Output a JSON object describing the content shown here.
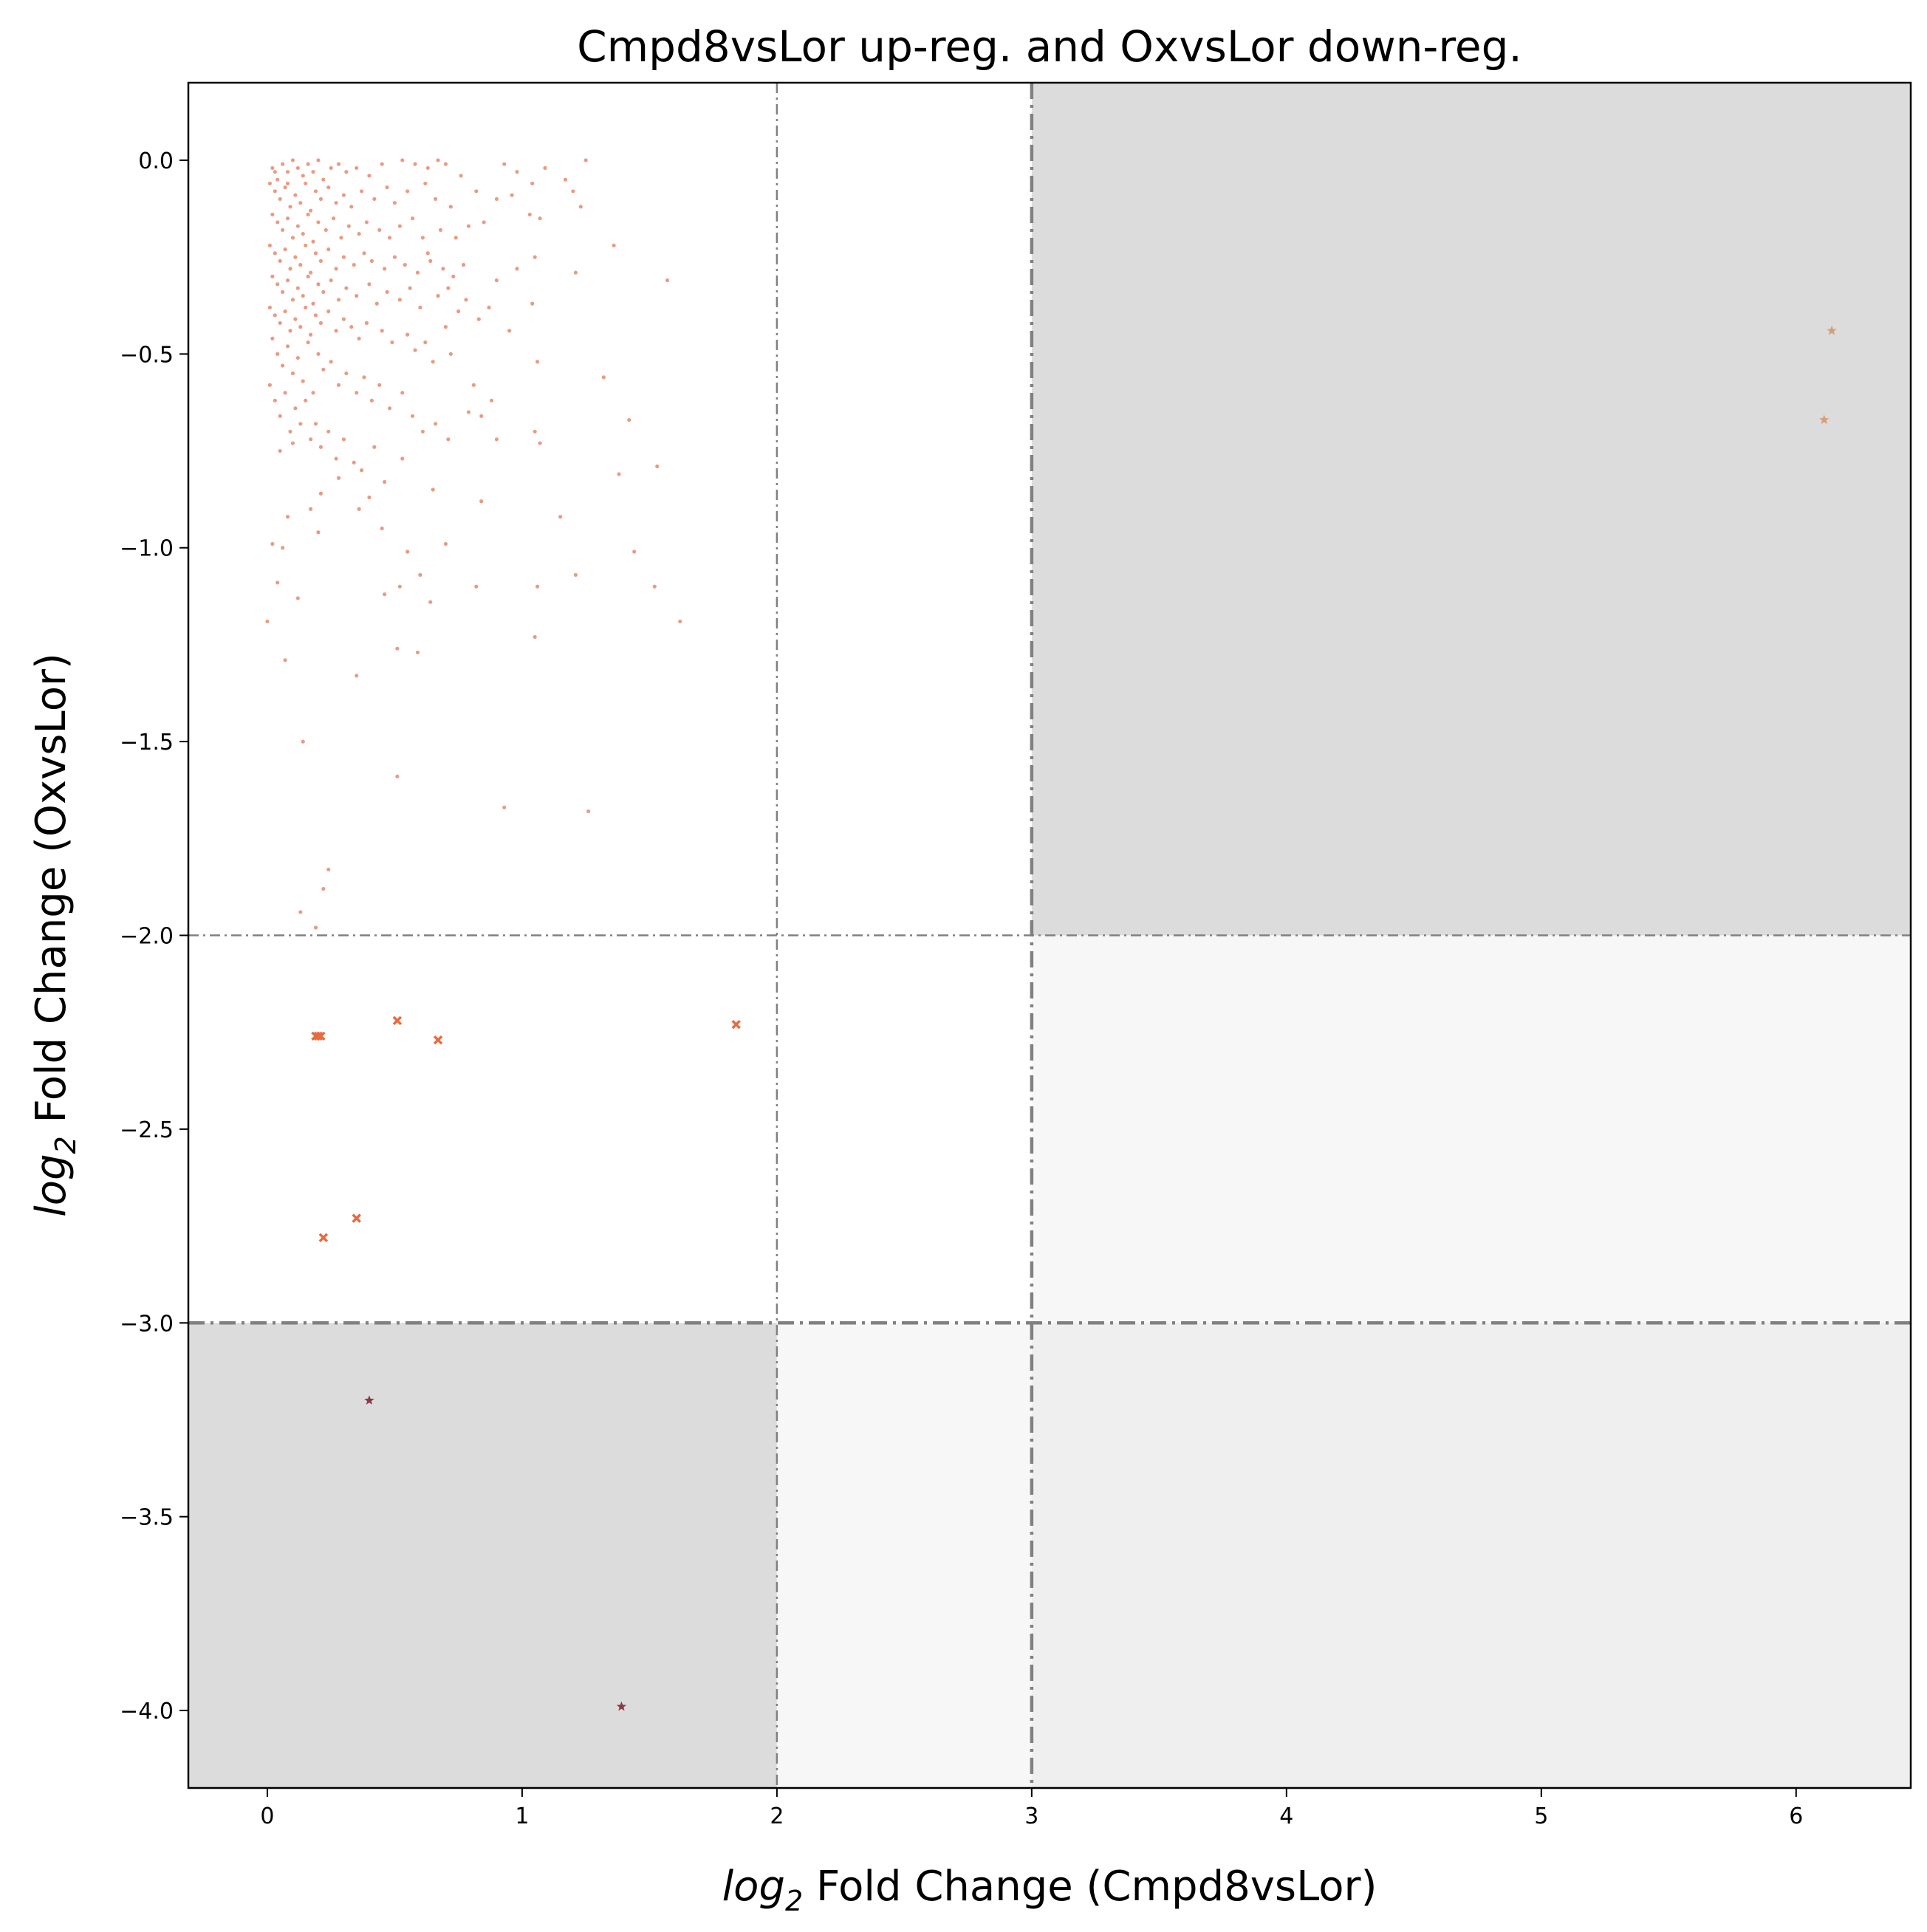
{
  "chart_data": {
    "type": "scatter",
    "title": "Cmpd8vsLor up-reg. and OxvsLor down-reg.",
    "xlabel_prefix": "log",
    "xlabel_sub": "2",
    "xlabel_rest": " Fold Change (Cmpd8vsLor)",
    "ylabel_prefix": "log",
    "ylabel_sub": "2",
    "ylabel_rest": " Fold Change (OxvsLor)",
    "xlim": [
      -0.31,
      6.45
    ],
    "ylim": [
      -4.2,
      0.2
    ],
    "xticks": [
      0,
      1,
      2,
      3,
      4,
      5,
      6
    ],
    "xtick_labels": [
      "0",
      "1",
      "2",
      "3",
      "4",
      "5",
      "6"
    ],
    "yticks": [
      0.0,
      -0.5,
      -1.0,
      -1.5,
      -2.0,
      -2.5,
      -3.0,
      -3.5,
      -4.0
    ],
    "ytick_labels": [
      "0.0",
      "−0.5",
      "−1.0",
      "−1.5",
      "−2.0",
      "−2.5",
      "−3.0",
      "−3.5",
      "−4.0"
    ],
    "grid": false,
    "threshold_lines": {
      "vertical": [
        {
          "x": 2,
          "style": "thin"
        },
        {
          "x": 3,
          "style": "thick"
        }
      ],
      "horizontal": [
        {
          "y": -2,
          "style": "thin"
        },
        {
          "y": -3,
          "style": "thick"
        }
      ],
      "color": "#808080"
    },
    "regions": [
      {
        "x": [
          3,
          6.45
        ],
        "y": [
          -2,
          0.2
        ],
        "color": "#dcdcdc"
      },
      {
        "x": [
          -0.31,
          2
        ],
        "y": [
          -4.2,
          -3
        ],
        "color": "#dcdcdc"
      },
      {
        "x": [
          3,
          6.45
        ],
        "y": [
          -3,
          -2
        ],
        "color": "#f7f7f7"
      },
      {
        "x": [
          2,
          3
        ],
        "y": [
          -4.2,
          -3
        ],
        "color": "#f7f7f7"
      },
      {
        "x": [
          3,
          6.45
        ],
        "y": [
          -4.2,
          -3
        ],
        "color": "#efefef"
      }
    ],
    "series": [
      {
        "marker": "dot",
        "color": "#e07b5a",
        "points": [
          [
            0.02,
            -0.02
          ],
          [
            0.04,
            -0.05
          ],
          [
            0.06,
            -0.01
          ],
          [
            0.08,
            -0.03
          ],
          [
            0.1,
            -0.0
          ],
          [
            0.12,
            -0.02
          ],
          [
            0.14,
            -0.04
          ],
          [
            0.16,
            -0.01
          ],
          [
            0.18,
            -0.03
          ],
          [
            0.2,
            -0.0
          ],
          [
            0.22,
            -0.05
          ],
          [
            0.25,
            -0.02
          ],
          [
            0.28,
            -0.01
          ],
          [
            0.31,
            -0.03
          ],
          [
            0.35,
            -0.02
          ],
          [
            0.4,
            -0.04
          ],
          [
            0.45,
            -0.01
          ],
          [
            0.53,
            -0.0
          ],
          [
            0.58,
            -0.01
          ],
          [
            0.63,
            -0.02
          ],
          [
            0.67,
            -0.0
          ],
          [
            0.7,
            -0.01
          ],
          [
            0.76,
            -0.04
          ],
          [
            0.93,
            -0.01
          ],
          [
            0.98,
            -0.03
          ],
          [
            1.04,
            -0.06
          ],
          [
            1.09,
            -0.02
          ],
          [
            1.17,
            -0.05
          ],
          [
            1.25,
            -0.0
          ],
          [
            1.2,
            -0.08
          ],
          [
            0.01,
            -0.06
          ],
          [
            0.03,
            -0.08
          ],
          [
            0.05,
            -0.1
          ],
          [
            0.07,
            -0.07
          ],
          [
            0.09,
            -0.12
          ],
          [
            0.11,
            -0.09
          ],
          [
            0.13,
            -0.11
          ],
          [
            0.15,
            -0.06
          ],
          [
            0.17,
            -0.13
          ],
          [
            0.19,
            -0.08
          ],
          [
            0.21,
            -0.1
          ],
          [
            0.24,
            -0.07
          ],
          [
            0.27,
            -0.11
          ],
          [
            0.3,
            -0.09
          ],
          [
            0.33,
            -0.12
          ],
          [
            0.37,
            -0.08
          ],
          [
            0.42,
            -0.1
          ],
          [
            0.47,
            -0.07
          ],
          [
            0.5,
            -0.11
          ],
          [
            0.55,
            -0.08
          ],
          [
            0.62,
            -0.06
          ],
          [
            0.66,
            -0.1
          ],
          [
            0.72,
            -0.12
          ],
          [
            0.82,
            -0.08
          ],
          [
            0.9,
            -0.1
          ],
          [
            1.03,
            -0.14
          ],
          [
            1.07,
            -0.15
          ],
          [
            1.23,
            -0.12
          ],
          [
            0.85,
            -0.16
          ],
          [
            0.96,
            -0.09
          ],
          [
            0.02,
            -0.14
          ],
          [
            0.04,
            -0.16
          ],
          [
            0.06,
            -0.18
          ],
          [
            0.08,
            -0.15
          ],
          [
            0.1,
            -0.2
          ],
          [
            0.12,
            -0.17
          ],
          [
            0.14,
            -0.19
          ],
          [
            0.16,
            -0.14
          ],
          [
            0.18,
            -0.21
          ],
          [
            0.2,
            -0.16
          ],
          [
            0.23,
            -0.18
          ],
          [
            0.26,
            -0.15
          ],
          [
            0.29,
            -0.2
          ],
          [
            0.32,
            -0.17
          ],
          [
            0.36,
            -0.19
          ],
          [
            0.39,
            -0.16
          ],
          [
            0.44,
            -0.18
          ],
          [
            0.48,
            -0.2
          ],
          [
            0.52,
            -0.17
          ],
          [
            0.57,
            -0.15
          ],
          [
            0.61,
            -0.2
          ],
          [
            0.68,
            -0.18
          ],
          [
            0.74,
            -0.2
          ],
          [
            0.79,
            -0.17
          ],
          [
            0.63,
            -0.24
          ],
          [
            1.36,
            -0.22
          ],
          [
            1.21,
            -0.29
          ],
          [
            1.57,
            -0.31
          ],
          [
            0.98,
            -0.28
          ],
          [
            1.05,
            -0.25
          ],
          [
            0.01,
            -0.22
          ],
          [
            0.03,
            -0.24
          ],
          [
            0.05,
            -0.26
          ],
          [
            0.07,
            -0.23
          ],
          [
            0.09,
            -0.28
          ],
          [
            0.11,
            -0.25
          ],
          [
            0.13,
            -0.27
          ],
          [
            0.15,
            -0.22
          ],
          [
            0.17,
            -0.29
          ],
          [
            0.19,
            -0.24
          ],
          [
            0.21,
            -0.26
          ],
          [
            0.24,
            -0.23
          ],
          [
            0.27,
            -0.28
          ],
          [
            0.3,
            -0.25
          ],
          [
            0.34,
            -0.27
          ],
          [
            0.38,
            -0.24
          ],
          [
            0.41,
            -0.26
          ],
          [
            0.46,
            -0.28
          ],
          [
            0.5,
            -0.25
          ],
          [
            0.54,
            -0.27
          ],
          [
            0.59,
            -0.29
          ],
          [
            0.64,
            -0.26
          ],
          [
            0.69,
            -0.28
          ],
          [
            0.73,
            -0.3
          ],
          [
            0.77,
            -0.27
          ],
          [
            0.9,
            -0.31
          ],
          [
            0.78,
            -0.36
          ],
          [
            0.87,
            -0.38
          ],
          [
            1.04,
            -0.37
          ],
          [
            0.71,
            -0.33
          ],
          [
            0.02,
            -0.3
          ],
          [
            0.04,
            -0.32
          ],
          [
            0.06,
            -0.34
          ],
          [
            0.08,
            -0.31
          ],
          [
            0.1,
            -0.36
          ],
          [
            0.12,
            -0.33
          ],
          [
            0.14,
            -0.35
          ],
          [
            0.16,
            -0.3
          ],
          [
            0.18,
            -0.37
          ],
          [
            0.2,
            -0.32
          ],
          [
            0.22,
            -0.34
          ],
          [
            0.25,
            -0.31
          ],
          [
            0.28,
            -0.36
          ],
          [
            0.31,
            -0.33
          ],
          [
            0.35,
            -0.35
          ],
          [
            0.4,
            -0.32
          ],
          [
            0.43,
            -0.37
          ],
          [
            0.47,
            -0.34
          ],
          [
            0.52,
            -0.36
          ],
          [
            0.56,
            -0.33
          ],
          [
            0.6,
            -0.38
          ],
          [
            0.67,
            -0.35
          ],
          [
            0.75,
            -0.39
          ],
          [
            0.83,
            -0.41
          ],
          [
            0.95,
            -0.44
          ],
          [
            1.06,
            -0.52
          ],
          [
            1.32,
            -0.56
          ],
          [
            1.42,
            -0.67
          ],
          [
            0.7,
            -0.43
          ],
          [
            0.62,
            -0.47
          ],
          [
            0.01,
            -0.38
          ],
          [
            0.03,
            -0.4
          ],
          [
            0.05,
            -0.42
          ],
          [
            0.07,
            -0.39
          ],
          [
            0.09,
            -0.44
          ],
          [
            0.11,
            -0.41
          ],
          [
            0.13,
            -0.43
          ],
          [
            0.15,
            -0.38
          ],
          [
            0.17,
            -0.45
          ],
          [
            0.19,
            -0.4
          ],
          [
            0.21,
            -0.42
          ],
          [
            0.24,
            -0.39
          ],
          [
            0.27,
            -0.44
          ],
          [
            0.3,
            -0.41
          ],
          [
            0.33,
            -0.43
          ],
          [
            0.36,
            -0.46
          ],
          [
            0.39,
            -0.42
          ],
          [
            0.45,
            -0.44
          ],
          [
            0.49,
            -0.47
          ],
          [
            0.55,
            -0.45
          ],
          [
            0.58,
            -0.49
          ],
          [
            0.65,
            -0.52
          ],
          [
            0.72,
            -0.5
          ],
          [
            0.81,
            -0.58
          ],
          [
            0.88,
            -0.62
          ],
          [
            0.84,
            -0.66
          ],
          [
            0.9,
            -0.72
          ],
          [
            1.05,
            -0.7
          ],
          [
            1.07,
            -0.73
          ],
          [
            0.79,
            -0.65
          ],
          [
            0.02,
            -0.46
          ],
          [
            0.04,
            -0.5
          ],
          [
            0.06,
            -0.53
          ],
          [
            0.08,
            -0.48
          ],
          [
            0.1,
            -0.55
          ],
          [
            0.12,
            -0.51
          ],
          [
            0.14,
            -0.57
          ],
          [
            0.16,
            -0.47
          ],
          [
            0.18,
            -0.6
          ],
          [
            0.2,
            -0.5
          ],
          [
            0.22,
            -0.54
          ],
          [
            0.25,
            -0.52
          ],
          [
            0.28,
            -0.58
          ],
          [
            0.31,
            -0.55
          ],
          [
            0.35,
            -0.6
          ],
          [
            0.38,
            -0.56
          ],
          [
            0.41,
            -0.62
          ],
          [
            0.44,
            -0.58
          ],
          [
            0.48,
            -0.64
          ],
          [
            0.53,
            -0.6
          ],
          [
            0.57,
            -0.66
          ],
          [
            0.61,
            -0.7
          ],
          [
            0.66,
            -0.68
          ],
          [
            0.71,
            -0.72
          ],
          [
            0.53,
            -0.77
          ],
          [
            0.46,
            -0.83
          ],
          [
            0.4,
            -0.87
          ],
          [
            0.65,
            -0.85
          ],
          [
            0.84,
            -0.88
          ],
          [
            0.45,
            -0.95
          ],
          [
            0.01,
            -0.58
          ],
          [
            0.03,
            -0.62
          ],
          [
            0.05,
            -0.66
          ],
          [
            0.07,
            -0.6
          ],
          [
            0.09,
            -0.7
          ],
          [
            0.11,
            -0.64
          ],
          [
            0.13,
            -0.68
          ],
          [
            0.15,
            -0.62
          ],
          [
            0.17,
            -0.72
          ],
          [
            0.19,
            -0.68
          ],
          [
            0.21,
            -0.74
          ],
          [
            0.24,
            -0.7
          ],
          [
            0.27,
            -0.77
          ],
          [
            0.3,
            -0.72
          ],
          [
            0.34,
            -0.78
          ],
          [
            0.37,
            -0.8
          ],
          [
            0.42,
            -0.74
          ],
          [
            0.36,
            -0.9
          ],
          [
            0.21,
            -0.86
          ],
          [
            0.2,
            -0.96
          ],
          [
            0.02,
            -0.99
          ],
          [
            0.06,
            -1.0
          ],
          [
            0.05,
            -0.75
          ],
          [
            0.1,
            -0.73
          ],
          [
            0.08,
            -0.92
          ],
          [
            0.17,
            -0.9
          ],
          [
            0.28,
            -0.82
          ],
          [
            1.15,
            -0.92
          ],
          [
            1.38,
            -0.81
          ],
          [
            1.53,
            -0.79
          ],
          [
            0.04,
            -1.09
          ],
          [
            0.12,
            -1.13
          ],
          [
            0.0,
            -1.19
          ],
          [
            0.07,
            -1.29
          ],
          [
            0.55,
            -1.01
          ],
          [
            0.6,
            -1.07
          ],
          [
            0.7,
            -0.99
          ],
          [
            0.52,
            -1.1
          ],
          [
            0.46,
            -1.12
          ],
          [
            0.64,
            -1.14
          ],
          [
            0.51,
            -1.26
          ],
          [
            0.59,
            -1.27
          ],
          [
            0.82,
            -1.1
          ],
          [
            1.06,
            -1.1
          ],
          [
            1.05,
            -1.23
          ],
          [
            1.21,
            -1.07
          ],
          [
            1.44,
            -1.01
          ],
          [
            1.52,
            -1.1
          ],
          [
            1.62,
            -1.19
          ],
          [
            0.35,
            -1.33
          ],
          [
            0.14,
            -1.5
          ],
          [
            0.51,
            -1.59
          ],
          [
            0.93,
            -1.67
          ],
          [
            1.26,
            -1.68
          ],
          [
            0.24,
            -1.83
          ],
          [
            0.22,
            -1.88
          ],
          [
            0.13,
            -1.94
          ],
          [
            0.19,
            -1.98
          ],
          [
            0.03,
            -0.03
          ],
          [
            0.08,
            -0.06
          ]
        ]
      },
      {
        "marker": "x",
        "color": "#e86a3f",
        "points": [
          [
            0.19,
            -2.26
          ],
          [
            0.2,
            -2.26
          ],
          [
            0.21,
            -2.26
          ],
          [
            0.51,
            -2.22
          ],
          [
            0.67,
            -2.27
          ],
          [
            1.84,
            -2.23
          ],
          [
            0.35,
            -2.73
          ],
          [
            0.22,
            -2.78
          ]
        ]
      },
      {
        "marker": "star",
        "color": "#d4a07a",
        "points": [
          [
            6.14,
            -0.44
          ],
          [
            6.11,
            -0.67
          ]
        ]
      },
      {
        "marker": "star",
        "color": "#8b3a4a",
        "points": [
          [
            0.4,
            -3.2
          ],
          [
            1.39,
            -3.99
          ]
        ]
      }
    ]
  }
}
